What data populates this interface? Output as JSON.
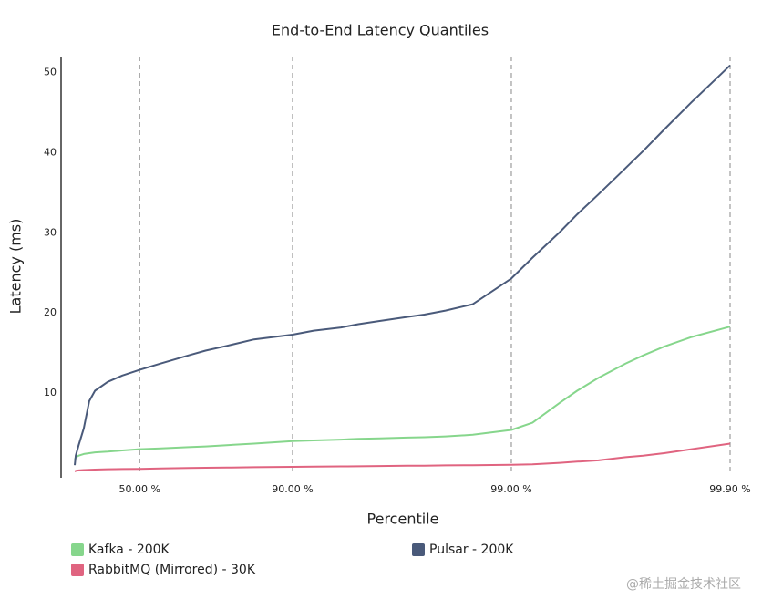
{
  "chart_data": {
    "type": "line",
    "title": "End-to-End Latency Quantiles",
    "x_label": "Percentile",
    "y_label": "Latency (ms)",
    "x_scale": "log-complement",
    "x": [
      1,
      2,
      5,
      10,
      15,
      20,
      30,
      40,
      50,
      60,
      70,
      75,
      80,
      85,
      90,
      92,
      94,
      95,
      96,
      97,
      97.5,
      98,
      98.5,
      99,
      99.2,
      99.4,
      99.5,
      99.6,
      99.7,
      99.75,
      99.8,
      99.85,
      99.9
    ],
    "series": [
      {
        "name": "Kafka - 200K",
        "color": "#86d68c",
        "values": [
          1.6,
          2.0,
          2.2,
          2.4,
          2.5,
          2.6,
          2.7,
          2.85,
          3.0,
          3.1,
          3.25,
          3.35,
          3.5,
          3.7,
          4.0,
          4.1,
          4.2,
          4.3,
          4.35,
          4.45,
          4.5,
          4.6,
          4.8,
          5.4,
          6.3,
          8.8,
          10.3,
          11.9,
          13.7,
          14.7,
          15.8,
          17.0,
          18.3
        ]
      },
      {
        "name": "Pulsar - 200K",
        "color": "#4a5a7a",
        "values": [
          1.0,
          2.2,
          3.5,
          5.6,
          9.0,
          10.3,
          11.4,
          12.2,
          12.9,
          13.7,
          14.7,
          15.3,
          15.9,
          16.7,
          17.3,
          17.8,
          18.2,
          18.6,
          19.0,
          19.5,
          19.8,
          20.3,
          21.1,
          24.3,
          26.9,
          30.1,
          32.3,
          34.8,
          38.1,
          40.2,
          42.9,
          46.3,
          50.9
        ]
      },
      {
        "name": "RabbitMQ (Mirrored) - 30K",
        "color": "#e06480",
        "values": [
          0.2,
          0.3,
          0.35,
          0.4,
          0.42,
          0.45,
          0.5,
          0.52,
          0.55,
          0.6,
          0.65,
          0.68,
          0.7,
          0.75,
          0.8,
          0.82,
          0.85,
          0.87,
          0.9,
          0.93,
          0.95,
          0.98,
          1.0,
          1.05,
          1.1,
          1.3,
          1.45,
          1.6,
          2.0,
          2.2,
          2.5,
          3.0,
          3.7
        ]
      }
    ],
    "xlim": [
      1,
      99.9
    ],
    "xticks": [
      {
        "value": 50,
        "label": "50.00 %"
      },
      {
        "value": 90,
        "label": "90.00 %"
      },
      {
        "value": 99,
        "label": "99.00 %"
      },
      {
        "value": 99.9,
        "label": "99.90 %"
      }
    ],
    "ylim": [
      0,
      52
    ],
    "yticks": [
      10,
      20,
      30,
      40,
      50
    ],
    "grid": true
  },
  "watermark": "@稀土掘金技术社区"
}
